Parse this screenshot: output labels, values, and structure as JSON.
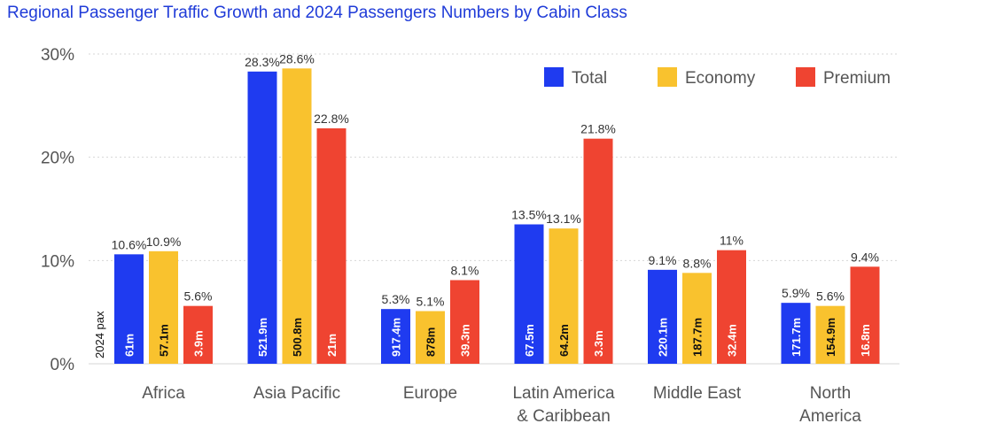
{
  "title": "Regional Passenger Traffic Growth and 2024 Passengers Numbers by Cabin Class",
  "chart_data": {
    "type": "bar",
    "categories": [
      "Africa",
      "Asia Pacific",
      "Europe",
      "Latin America & Caribbean",
      "Middle East",
      "North America"
    ],
    "category_lines": [
      [
        "Africa"
      ],
      [
        "Asia Pacific"
      ],
      [
        "Europe"
      ],
      [
        "Latin America",
        "& Caribbean"
      ],
      [
        "Middle East"
      ],
      [
        "North",
        "America"
      ]
    ],
    "series": [
      {
        "name": "Total",
        "color": "#1f3bf0",
        "values": [
          10.6,
          28.3,
          5.3,
          13.5,
          9.1,
          5.9
        ],
        "value_labels": [
          "10.6%",
          "28.3%",
          "5.3%",
          "13.5%",
          "9.1%",
          "5.9%"
        ],
        "pax_labels": [
          "61m",
          "521.9m",
          "917.4m",
          "67.5m",
          "220.1m",
          "171.7m"
        ]
      },
      {
        "name": "Economy",
        "color": "#f9c22e",
        "values": [
          10.9,
          28.6,
          5.1,
          13.1,
          8.8,
          5.6
        ],
        "value_labels": [
          "10.9%",
          "28.6%",
          "5.1%",
          "13.1%",
          "8.8%",
          "5.6%"
        ],
        "pax_labels": [
          "57.1m",
          "500.8m",
          "878m",
          "64.2m",
          "187.7m",
          "154.9m"
        ]
      },
      {
        "name": "Premium",
        "color": "#ef4431",
        "values": [
          5.6,
          22.8,
          8.1,
          21.8,
          11,
          9.4
        ],
        "value_labels": [
          "5.6%",
          "22.8%",
          "8.1%",
          "21.8%",
          "11%",
          "9.4%"
        ],
        "pax_labels": [
          "3.9m",
          "21m",
          "39.3m",
          "3.3m",
          "32.4m",
          "16.8m"
        ]
      }
    ],
    "yticks": [
      0,
      10,
      20,
      30
    ],
    "ytick_labels": [
      "0%",
      "10%",
      "20%",
      "30%"
    ],
    "ylim": [
      0,
      30
    ],
    "grid": true,
    "legend_position": "top-right",
    "side_label": "2024 pax"
  }
}
